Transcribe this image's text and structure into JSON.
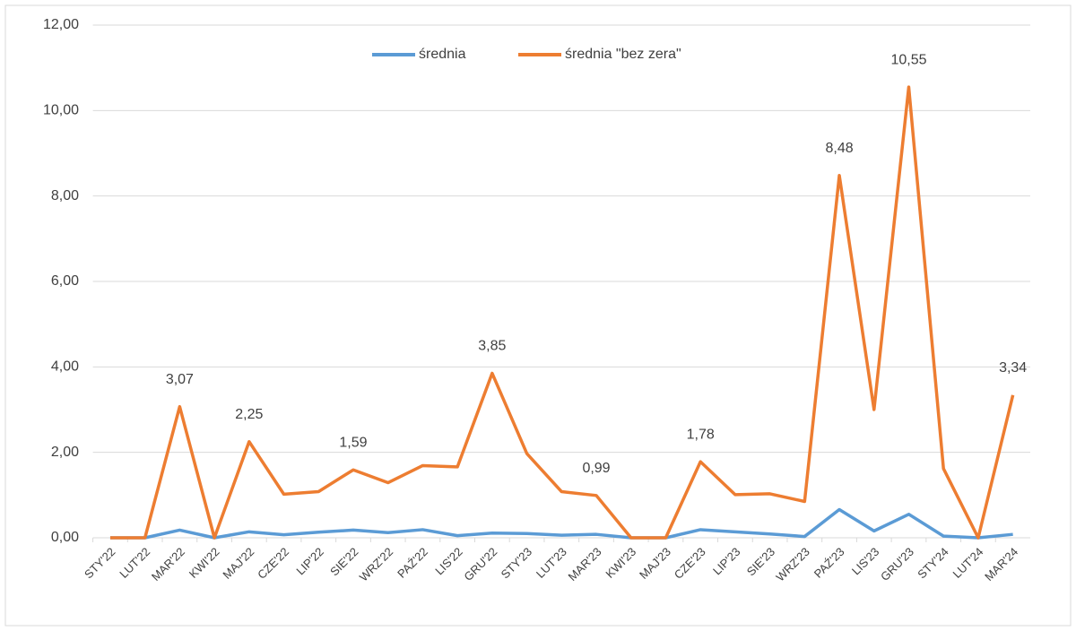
{
  "chart_data": {
    "type": "line",
    "categories": [
      "STY'22",
      "LUT'22",
      "MAR'22",
      "KWI'22",
      "MAJ'22",
      "CZE'22",
      "LIP'22",
      "SIE'22",
      "WRZ'22",
      "PAŹ'22",
      "LIS'22",
      "GRU'22",
      "STY'23",
      "LUT'23",
      "MAR'23",
      "KWI'23",
      "MAJ'23",
      "CZE'23",
      "LIP'23",
      "SIE'23",
      "WRZ'23",
      "PAŹ'23",
      "LIS'23",
      "GRU'23",
      "STY'24",
      "LUT'24",
      "MAR'24"
    ],
    "series": [
      {
        "name": "średnia",
        "color": "#5b9bd5",
        "values": [
          0,
          0,
          0.18,
          0,
          0.14,
          0.07,
          0.13,
          0.18,
          0.12,
          0.19,
          0.05,
          0.11,
          0.1,
          0.06,
          0.08,
          0,
          0,
          0.19,
          0.14,
          0.09,
          0.03,
          0.66,
          0.16,
          0.55,
          0.04,
          0,
          0.08
        ]
      },
      {
        "name": "średnia \"bez zera\"",
        "color": "#ed7d31",
        "values": [
          0,
          0,
          3.07,
          0,
          2.25,
          1.02,
          1.08,
          1.59,
          1.29,
          1.69,
          1.66,
          3.85,
          1.97,
          1.08,
          0.99,
          0,
          0,
          1.78,
          1.01,
          1.03,
          0.85,
          8.48,
          3.0,
          10.55,
          1.62,
          0,
          3.34
        ],
        "value_labels": [
          null,
          null,
          "3,07",
          null,
          "2,25",
          null,
          null,
          "1,59",
          null,
          null,
          null,
          "3,85",
          null,
          null,
          "0,99",
          null,
          null,
          "1,78",
          null,
          null,
          null,
          "8,48",
          null,
          "10,55",
          null,
          null,
          "3,34"
        ]
      }
    ],
    "ylim": [
      0,
      12
    ],
    "yticks": [
      {
        "value": 0,
        "label": "0,00"
      },
      {
        "value": 2,
        "label": "2,00"
      },
      {
        "value": 4,
        "label": "4,00"
      },
      {
        "value": 6,
        "label": "6,00"
      },
      {
        "value": 8,
        "label": "8,00"
      },
      {
        "value": 10,
        "label": "10,00"
      },
      {
        "value": 12,
        "label": "12,00"
      }
    ],
    "grid": true,
    "legend": "top"
  }
}
